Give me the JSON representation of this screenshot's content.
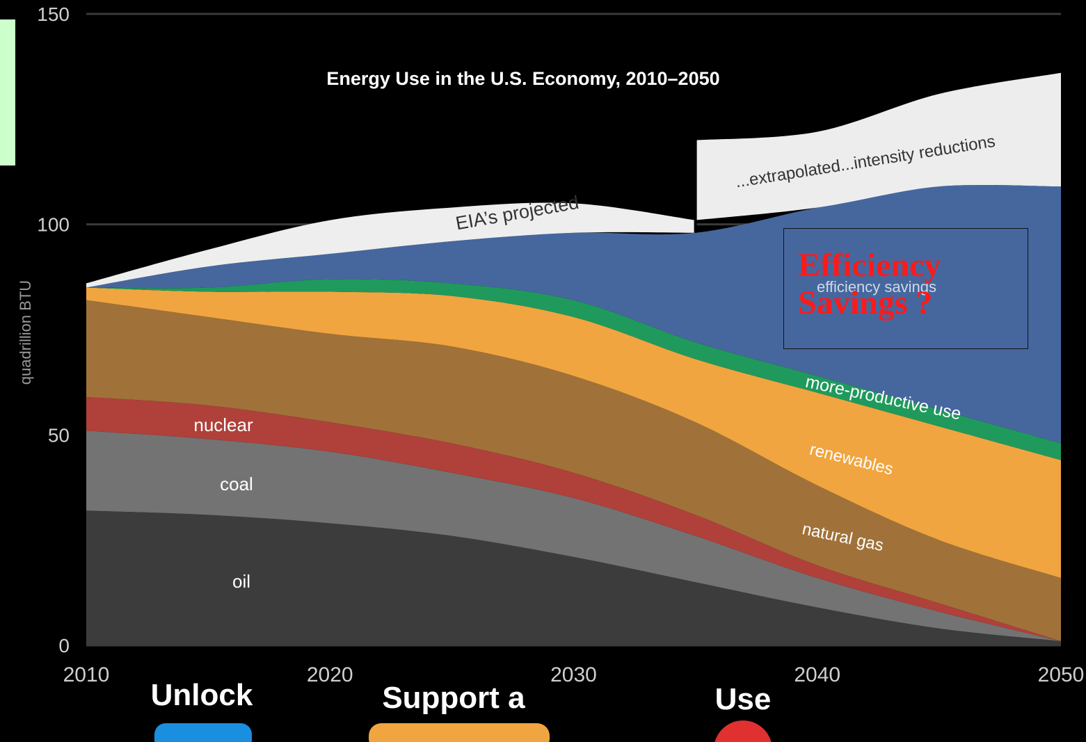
{
  "chart_data": {
    "type": "area",
    "title": "Energy Use in the U.S. Economy, 2010–2050",
    "xlabel": "",
    "ylabel": "quadrillion BTU",
    "xlim": [
      2010,
      2050
    ],
    "ylim": [
      0,
      150
    ],
    "x": [
      2010,
      2015,
      2020,
      2025,
      2030,
      2035,
      2040,
      2045,
      2050
    ],
    "xticks": [
      "2010",
      "2020",
      "2030",
      "2040",
      "2050"
    ],
    "yticks": [
      "0",
      "50",
      "100",
      "150"
    ],
    "grid": "horizontal",
    "stacking": "stacked",
    "series": [
      {
        "name": "oil",
        "color": "#3c3c3c",
        "values": [
          32,
          31,
          29,
          26,
          21,
          15,
          9,
          4,
          1
        ]
      },
      {
        "name": "coal",
        "color": "#737373",
        "values": [
          19,
          18,
          17,
          15,
          14,
          11,
          7,
          4,
          0
        ]
      },
      {
        "name": "nuclear",
        "color": "#b0403a",
        "values": [
          8,
          8,
          7,
          7,
          6,
          5,
          3,
          2,
          0
        ]
      },
      {
        "name": "natural gas",
        "color": "#a0723a",
        "values": [
          23,
          21,
          21,
          23,
          23,
          22,
          19,
          15,
          15
        ]
      },
      {
        "name": "renewables",
        "color": "#f0a540",
        "values": [
          3,
          6,
          10,
          12,
          14,
          15,
          22,
          27,
          28
        ]
      },
      {
        "name": "more-productive use",
        "color": "#1f9a5c",
        "values": [
          0,
          1,
          3,
          3,
          4,
          4,
          4,
          4,
          4
        ]
      },
      {
        "name": "efficiency savings",
        "color": "#46679e",
        "values": [
          0,
          5,
          6,
          10,
          16,
          26,
          40,
          53,
          61
        ]
      },
      {
        "name": "EIA’s projected",
        "color": "#eeeeee",
        "values": [
          1,
          4,
          8,
          8,
          7,
          3,
          0,
          0,
          0
        ]
      },
      {
        "name": "...extrapolated...intensity reductions",
        "color": "#ededed",
        "values": [
          0,
          0,
          0,
          0,
          0,
          19,
          18,
          22,
          27
        ]
      }
    ],
    "annotations": [
      "EIA’s projected",
      "...extrapolated...intensity reductions",
      "efficiency savings",
      "more-productive use",
      "renewables",
      "natural gas",
      "nuclear",
      "coal",
      "oil"
    ],
    "divider_year": 2035
  },
  "overlay": {
    "callout_line1": "Efficiency",
    "callout_line2": "Savings ?"
  },
  "footer": {
    "items": [
      "Unlock",
      "Support a",
      "Use"
    ],
    "colors": [
      "#1a8fe0",
      "#f0a540",
      "#e03030"
    ]
  }
}
